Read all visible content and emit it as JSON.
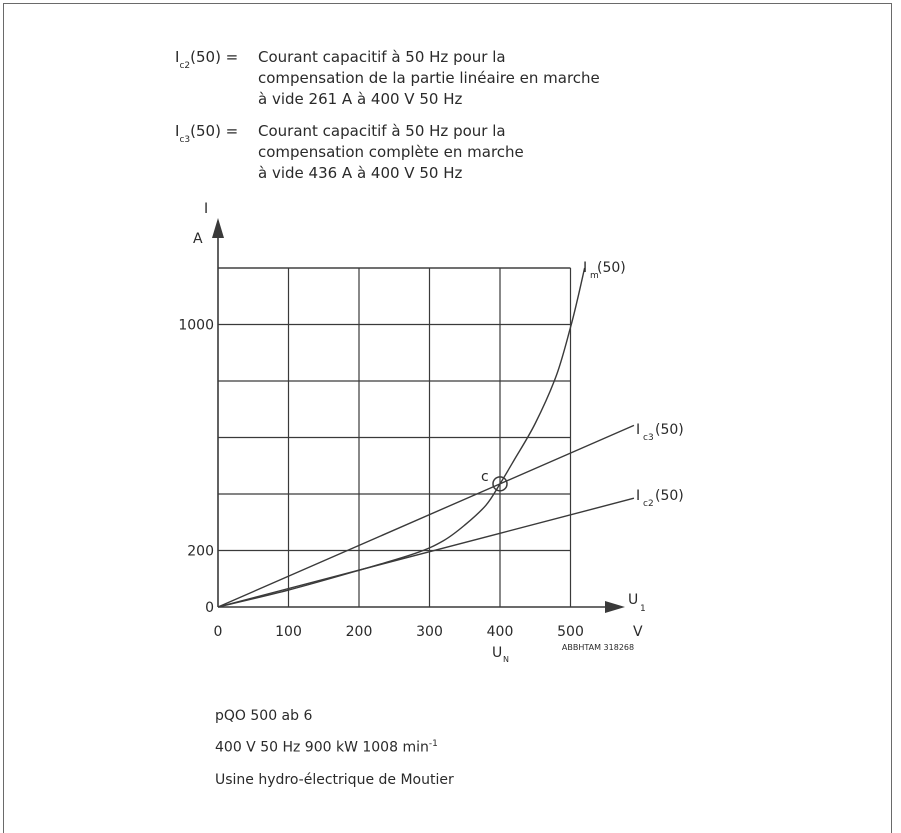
{
  "definitions": [
    {
      "symbol": "I",
      "subscript": "c2",
      "arg": "(50) =",
      "lines": [
        "Courant capacitif à 50 Hz pour la",
        "compensation de la partie linéaire en marche",
        "à vide 261 A à 400 V 50 Hz"
      ]
    },
    {
      "symbol": "I",
      "subscript": "c3",
      "arg": "(50) =",
      "lines": [
        "Courant capacitif à 50 Hz pour la",
        "compensation complète en marche",
        "à vide 436 A à 400 V 50 Hz"
      ]
    }
  ],
  "chart_data": {
    "type": "line",
    "x_axis": {
      "label": "U",
      "label_sub": "1",
      "unit": "V",
      "ticks": [
        0,
        100,
        200,
        300,
        400,
        500
      ],
      "range": [
        0,
        560
      ],
      "marker_label": "U",
      "marker_sub": "N",
      "marker_value": 400
    },
    "y_axis": {
      "label": "I",
      "unit": "A",
      "tick_labels": [
        "0",
        "200",
        "1000"
      ],
      "tick_values": [
        0,
        200,
        1000
      ],
      "range": [
        0,
        1250
      ],
      "grid_step": 200
    },
    "grid": true,
    "series": [
      {
        "name": "I",
        "name_sub": "m",
        "name_arg": "(50)",
        "points": [
          [
            0,
            0
          ],
          [
            100,
            60
          ],
          [
            200,
            130
          ],
          [
            280,
            190
          ],
          [
            320,
            235
          ],
          [
            350,
            290
          ],
          [
            380,
            360
          ],
          [
            400,
            436
          ],
          [
            420,
            520
          ],
          [
            450,
            650
          ],
          [
            480,
            820
          ],
          [
            500,
            990
          ],
          [
            510,
            1090
          ],
          [
            520,
            1200
          ]
        ]
      },
      {
        "name": "I",
        "name_sub": "c3",
        "name_arg": "(50)",
        "points": [
          [
            0,
            0
          ],
          [
            400,
            436
          ],
          [
            590,
            643
          ]
        ]
      },
      {
        "name": "I",
        "name_sub": "c2",
        "name_arg": "(50)",
        "points": [
          [
            0,
            0
          ],
          [
            400,
            261
          ],
          [
            590,
            385
          ]
        ]
      }
    ],
    "point_marker": {
      "label": "c",
      "x": 400,
      "y": 436
    },
    "reference": "ABBHTAM 318268"
  },
  "footer": {
    "line1": "pQO 500  ab 6",
    "line2_main": "400 V  50 Hz  900 kW  1008 min",
    "line2_sup": "-1",
    "line3": "Usine hydro-électrique de Moutier"
  }
}
